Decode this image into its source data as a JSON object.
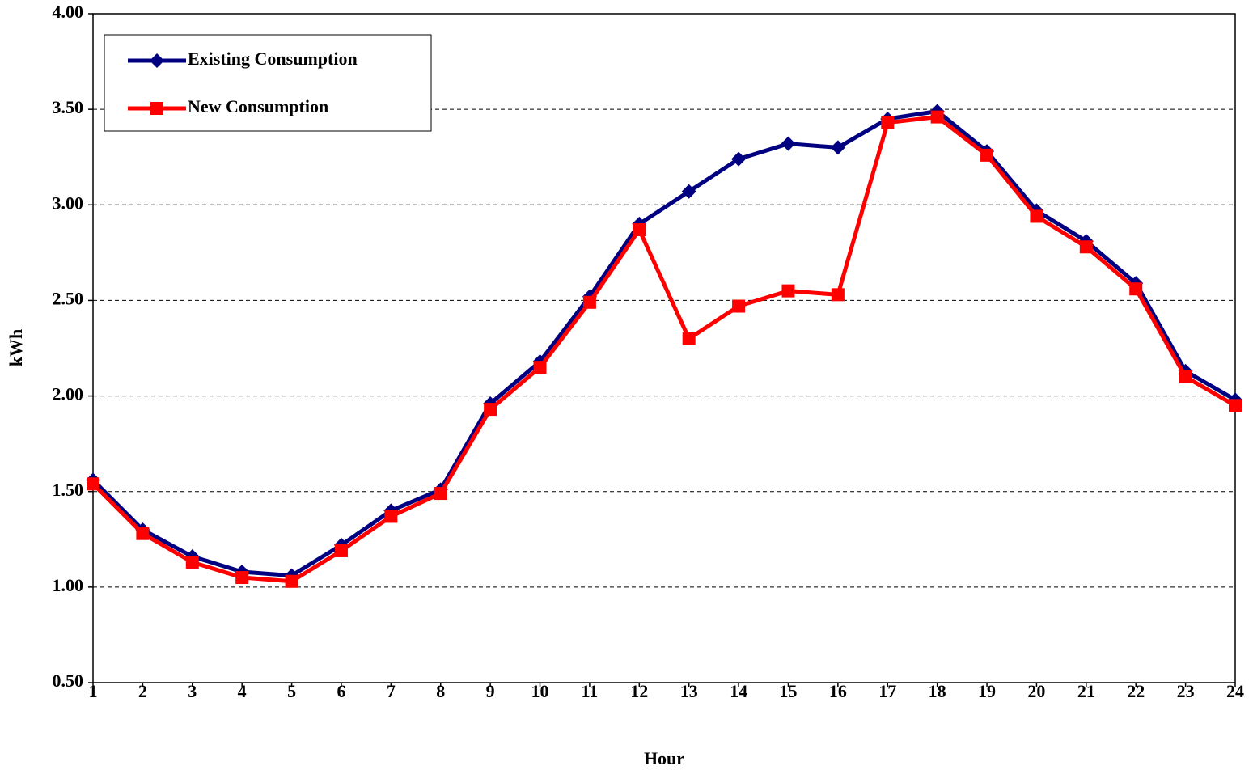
{
  "chart_data": {
    "type": "line",
    "x": [
      1,
      2,
      3,
      4,
      5,
      6,
      7,
      8,
      9,
      10,
      11,
      12,
      13,
      14,
      15,
      16,
      17,
      18,
      19,
      20,
      21,
      22,
      23,
      24
    ],
    "xlim": [
      1,
      24
    ],
    "xticks": [
      1,
      2,
      3,
      4,
      5,
      6,
      7,
      8,
      9,
      10,
      11,
      12,
      13,
      14,
      15,
      16,
      17,
      18,
      19,
      20,
      21,
      22,
      23,
      24
    ],
    "ylim": [
      0.5,
      4
    ],
    "yticks": [
      {
        "value": 0.5,
        "label": "0.50"
      },
      {
        "value": 1,
        "label": "1.00"
      },
      {
        "value": 1.5,
        "label": "1.50"
      },
      {
        "value": 2,
        "label": "2.00"
      },
      {
        "value": 2.5,
        "label": "2.50"
      },
      {
        "value": 3,
        "label": "3.00"
      },
      {
        "value": 3.5,
        "label": "3.50"
      },
      {
        "value": 4,
        "label": "4.00"
      }
    ],
    "x_label": "Hour",
    "y_label": "kWh",
    "grid": true,
    "legend": "upper left",
    "series": [
      {
        "name": "Existing Consumption",
        "color": "#000080",
        "marker": "diamond",
        "values": [
          1.56,
          1.3,
          1.16,
          1.08,
          1.06,
          1.22,
          1.4,
          1.51,
          1.96,
          2.18,
          2.52,
          2.9,
          3.07,
          3.24,
          3.32,
          3.3,
          3.45,
          3.49,
          3.28,
          2.97,
          2.81,
          2.59,
          2.13,
          1.98
        ]
      },
      {
        "name": "New Consumption",
        "color": "#ff0000",
        "marker": "square",
        "values": [
          1.54,
          1.28,
          1.13,
          1.05,
          1.03,
          1.19,
          1.37,
          1.49,
          1.93,
          2.15,
          2.49,
          2.87,
          2.3,
          2.47,
          2.55,
          2.53,
          3.43,
          3.46,
          3.26,
          2.94,
          2.78,
          2.56,
          2.1,
          1.95
        ]
      }
    ]
  }
}
